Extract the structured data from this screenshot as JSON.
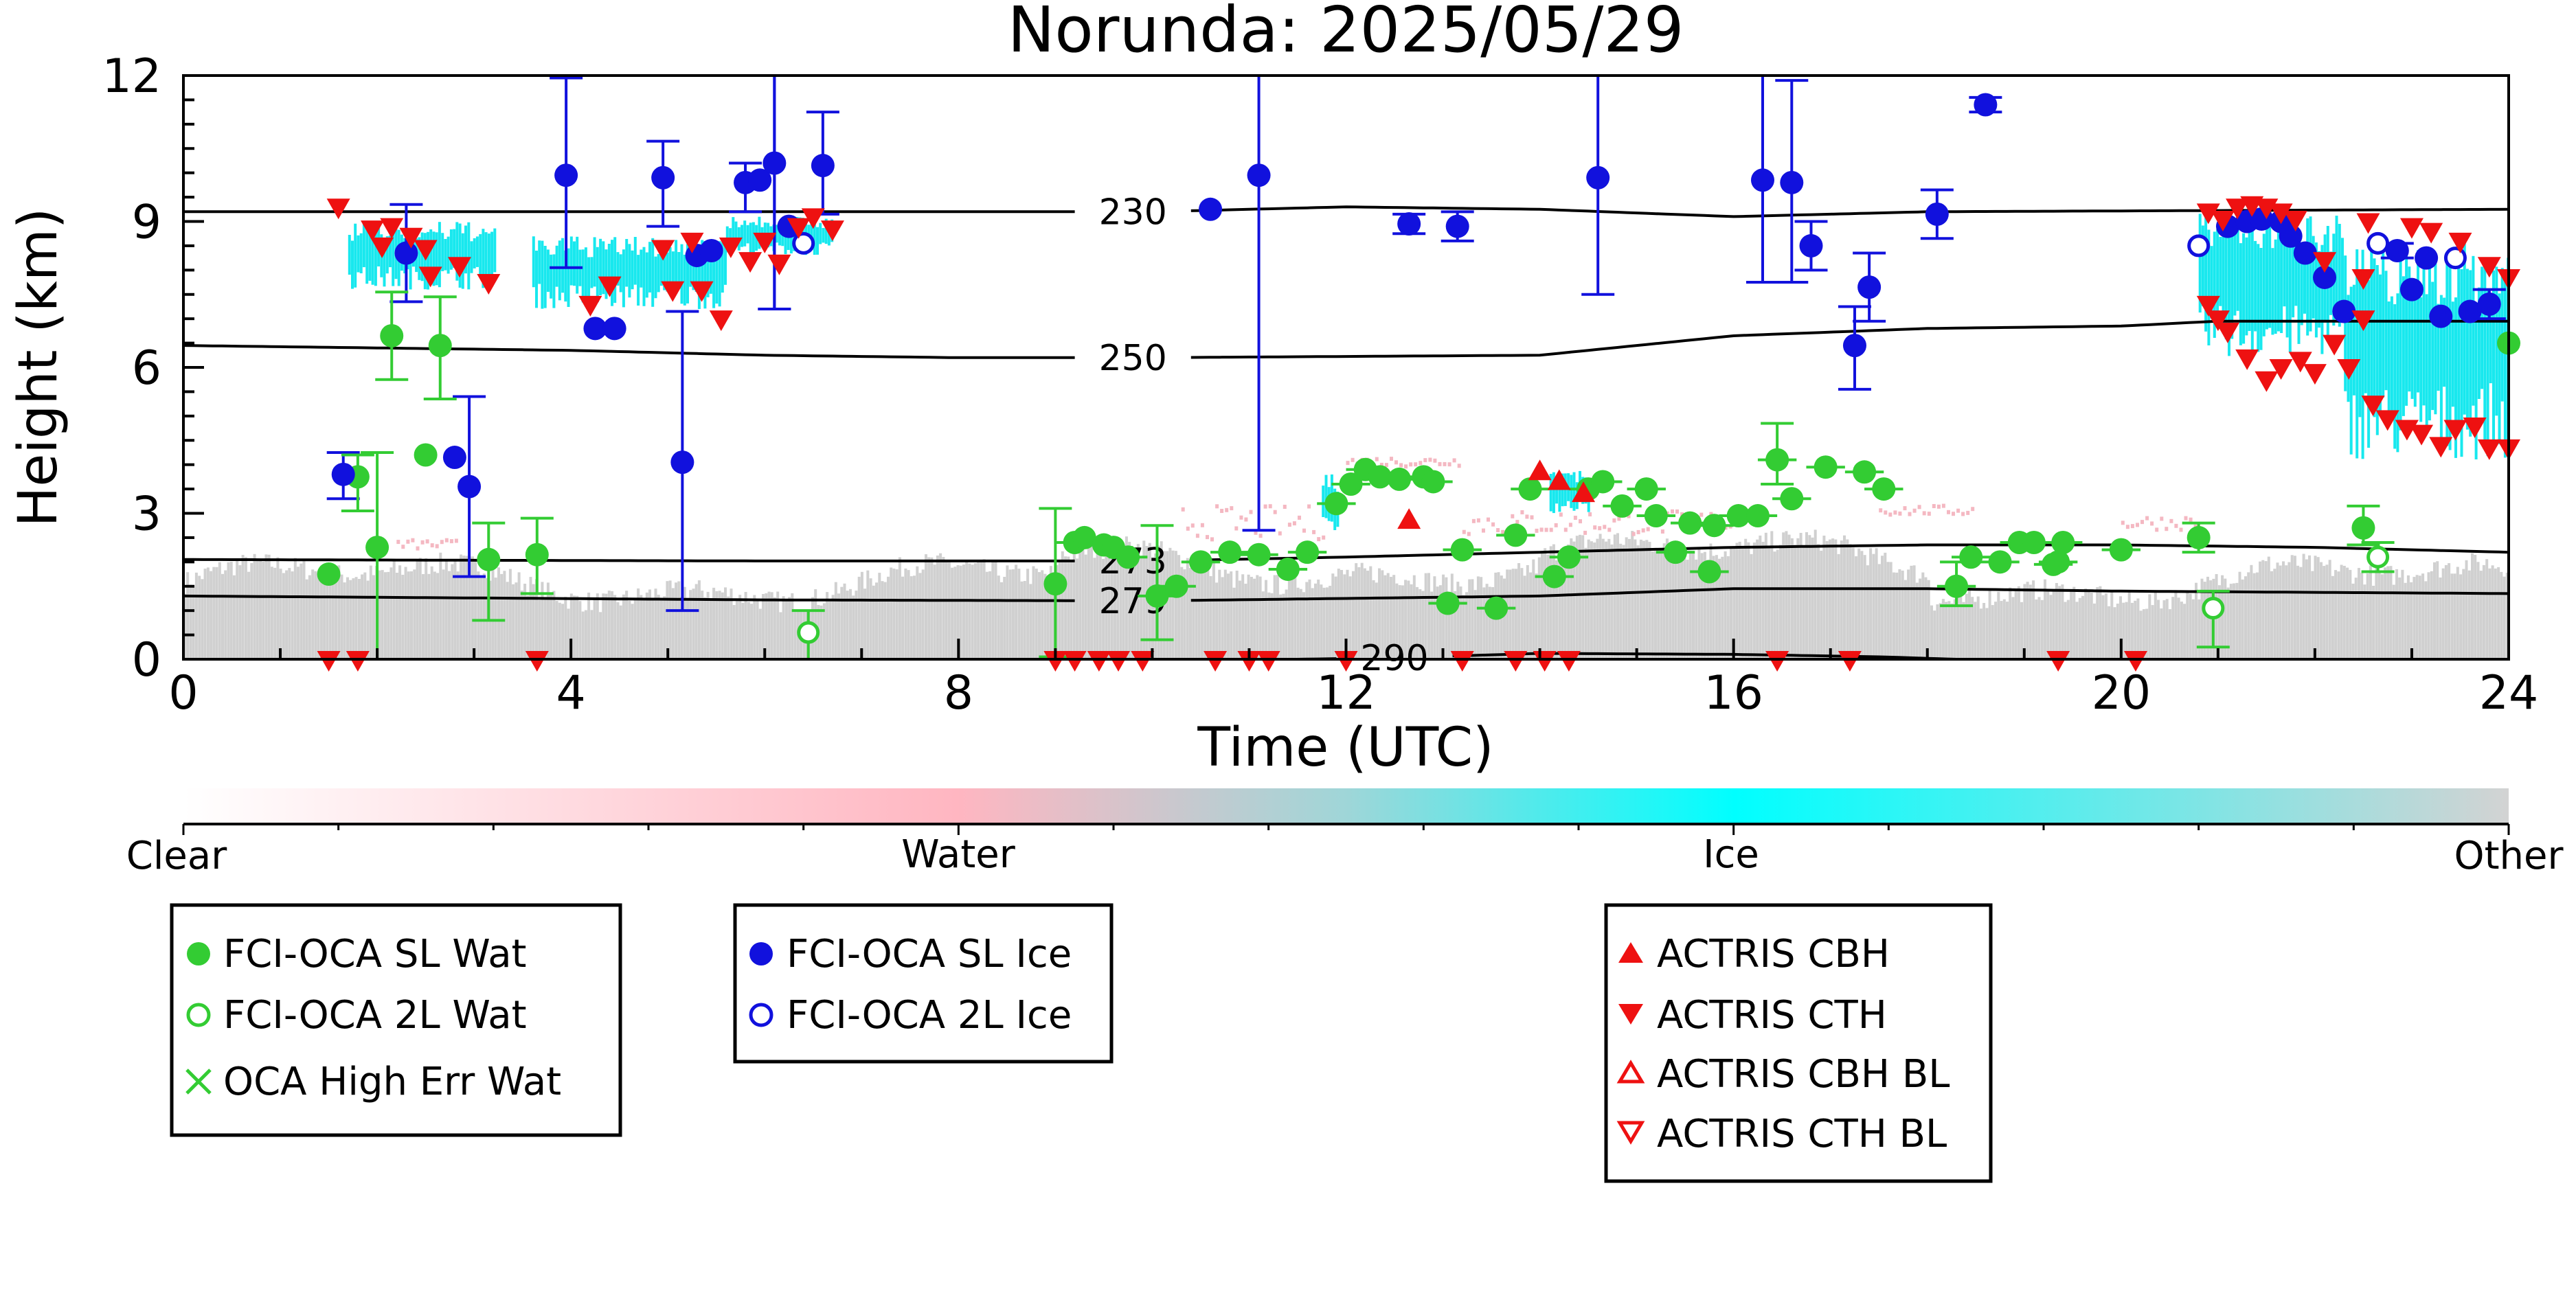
{
  "chart_data": {
    "type": "scatter",
    "title": "Norunda: 2025/05/29",
    "xlabel": "Time (UTC)",
    "ylabel": "Height (km)",
    "xlim": [
      0,
      24
    ],
    "ylim": [
      0,
      12
    ],
    "xticks": [
      "0",
      "4",
      "8",
      "12",
      "16",
      "20",
      "24"
    ],
    "yticks": [
      "0",
      "3",
      "6",
      "9",
      "12"
    ],
    "colors": {
      "sl_water": "#33cc33",
      "ice": "#1111dd",
      "actris": "#ee1111",
      "cyan": "#18e8ee",
      "pink": "#f4b8c2",
      "grey": "#d0d0d0"
    },
    "isotherms": [
      {
        "label": "230",
        "label_x": 9.8,
        "points": [
          [
            0,
            9.2
          ],
          [
            8,
            9.2
          ],
          [
            10,
            9.2
          ],
          [
            12,
            9.3
          ],
          [
            14,
            9.25
          ],
          [
            16,
            9.1
          ],
          [
            18,
            9.2
          ],
          [
            24,
            9.25
          ]
        ]
      },
      {
        "label": "250",
        "label_x": 9.8,
        "points": [
          [
            0,
            6.45
          ],
          [
            4,
            6.35
          ],
          [
            6,
            6.25
          ],
          [
            8,
            6.2
          ],
          [
            10,
            6.2
          ],
          [
            14,
            6.25
          ],
          [
            15,
            6.45
          ],
          [
            16,
            6.65
          ],
          [
            18,
            6.8
          ],
          [
            20,
            6.85
          ],
          [
            21,
            6.95
          ],
          [
            24,
            6.95
          ]
        ]
      },
      {
        "label": "273",
        "label_x": 9.8,
        "points": [
          [
            0,
            2.05
          ],
          [
            6,
            2.02
          ],
          [
            10,
            2.02
          ],
          [
            12,
            2.1
          ],
          [
            14,
            2.2
          ],
          [
            16,
            2.3
          ],
          [
            18,
            2.35
          ],
          [
            20,
            2.35
          ],
          [
            22,
            2.3
          ],
          [
            24,
            2.2
          ]
        ]
      },
      {
        "label": "279",
        "label_x": 9.8,
        "points": [
          [
            0,
            1.3
          ],
          [
            6,
            1.22
          ],
          [
            10,
            1.2
          ],
          [
            12,
            1.25
          ],
          [
            14,
            1.3
          ],
          [
            16,
            1.45
          ],
          [
            18,
            1.45
          ],
          [
            20,
            1.4
          ],
          [
            24,
            1.35
          ]
        ]
      },
      {
        "label": "290",
        "label_x": 12.5,
        "points": [
          [
            11.5,
            0.0
          ],
          [
            12.5,
            0.03
          ],
          [
            14,
            0.12
          ],
          [
            16,
            0.1
          ],
          [
            17.5,
            0.05
          ],
          [
            18.3,
            0.0
          ]
        ]
      }
    ],
    "series": [
      {
        "name": "FCI-OCA SL Wat",
        "points": [
          [
            1.5,
            1.75
          ],
          [
            1.8,
            3.75
          ],
          [
            2.0,
            2.3
          ],
          [
            2.15,
            6.65
          ],
          [
            2.5,
            4.2
          ],
          [
            2.65,
            6.45
          ],
          [
            3.15,
            2.05
          ],
          [
            3.65,
            2.15
          ],
          [
            9.0,
            1.55
          ],
          [
            9.2,
            2.4
          ],
          [
            9.3,
            2.5
          ],
          [
            9.5,
            2.35
          ],
          [
            9.6,
            2.3
          ],
          [
            9.75,
            2.1
          ],
          [
            10.05,
            1.3
          ],
          [
            10.25,
            1.5
          ],
          [
            10.5,
            2.0
          ],
          [
            10.8,
            2.2
          ],
          [
            11.1,
            2.15
          ],
          [
            11.4,
            1.85
          ],
          [
            11.6,
            2.2
          ],
          [
            11.9,
            3.2
          ],
          [
            12.05,
            3.6
          ],
          [
            12.2,
            3.9
          ],
          [
            12.35,
            3.75
          ],
          [
            12.55,
            3.7
          ],
          [
            12.8,
            3.75
          ],
          [
            12.9,
            3.65
          ],
          [
            13.05,
            1.15
          ],
          [
            13.2,
            2.25
          ],
          [
            13.55,
            1.05
          ],
          [
            13.75,
            2.55
          ],
          [
            13.9,
            3.5
          ],
          [
            14.15,
            1.7
          ],
          [
            14.3,
            2.1
          ],
          [
            14.5,
            3.5
          ],
          [
            14.65,
            3.65
          ],
          [
            14.85,
            3.15
          ],
          [
            15.1,
            3.5
          ],
          [
            15.2,
            2.95
          ],
          [
            15.4,
            2.2
          ],
          [
            15.55,
            2.8
          ],
          [
            15.75,
            1.8
          ],
          [
            15.8,
            2.75
          ],
          [
            16.05,
            2.95
          ],
          [
            16.25,
            2.95
          ],
          [
            16.45,
            4.1
          ],
          [
            16.6,
            3.3
          ],
          [
            16.95,
            3.95
          ],
          [
            17.35,
            3.85
          ],
          [
            17.55,
            3.5
          ],
          [
            18.3,
            1.5
          ],
          [
            18.45,
            2.1
          ],
          [
            18.75,
            2.0
          ],
          [
            18.95,
            2.4
          ],
          [
            19.1,
            2.4
          ],
          [
            19.3,
            1.95
          ],
          [
            19.35,
            2.0
          ],
          [
            19.4,
            2.4
          ],
          [
            20.0,
            2.25
          ],
          [
            20.8,
            2.5
          ],
          [
            22.5,
            2.7
          ],
          [
            24.0,
            6.5
          ]
        ]
      },
      {
        "name": "FCI-OCA 2L Wat",
        "points": [
          [
            6.45,
            0.55
          ],
          [
            20.95,
            1.05
          ],
          [
            22.65,
            2.1
          ]
        ]
      },
      {
        "name": "OCA High Err Wat",
        "points": []
      },
      {
        "name": "FCI-OCA SL Ice",
        "points": [
          [
            1.65,
            3.8
          ],
          [
            2.3,
            8.35
          ],
          [
            2.8,
            4.15
          ],
          [
            2.95,
            3.55
          ],
          [
            3.95,
            9.95
          ],
          [
            4.25,
            6.8
          ],
          [
            4.45,
            6.8
          ],
          [
            4.95,
            9.9
          ],
          [
            5.15,
            4.05
          ],
          [
            5.3,
            8.3
          ],
          [
            5.45,
            8.4
          ],
          [
            5.8,
            9.8
          ],
          [
            5.95,
            9.85
          ],
          [
            6.1,
            10.2
          ],
          [
            6.25,
            8.9
          ],
          [
            6.6,
            10.15
          ],
          [
            10.6,
            9.25
          ],
          [
            11.1,
            9.95
          ],
          [
            12.65,
            8.95
          ],
          [
            13.15,
            8.9
          ],
          [
            14.6,
            9.9
          ],
          [
            16.3,
            9.85
          ],
          [
            16.6,
            9.8
          ],
          [
            16.8,
            8.5
          ],
          [
            17.25,
            6.45
          ],
          [
            17.4,
            7.65
          ],
          [
            18.1,
            9.15
          ],
          [
            18.6,
            11.4
          ],
          [
            21.1,
            8.9
          ],
          [
            21.3,
            9.0
          ],
          [
            21.45,
            9.05
          ],
          [
            21.65,
            9.0
          ],
          [
            21.75,
            8.7
          ],
          [
            21.9,
            8.35
          ],
          [
            22.1,
            7.85
          ],
          [
            22.3,
            7.15
          ],
          [
            22.85,
            8.4
          ],
          [
            23.0,
            7.6
          ],
          [
            23.15,
            8.25
          ],
          [
            23.3,
            7.05
          ],
          [
            23.6,
            7.15
          ],
          [
            23.8,
            7.3
          ]
        ]
      },
      {
        "name": "FCI-OCA 2L Ice",
        "points": [
          [
            6.4,
            8.55
          ],
          [
            20.8,
            8.5
          ],
          [
            22.65,
            8.55
          ],
          [
            23.45,
            8.25
          ]
        ]
      },
      {
        "name": "ACTRIS CBH",
        "points": [
          [
            12.65,
            2.85
          ],
          [
            14.0,
            3.85
          ],
          [
            14.2,
            3.65
          ],
          [
            14.45,
            3.4
          ]
        ]
      },
      {
        "name": "ACTRIS CTH",
        "points": [
          [
            1.6,
            9.3
          ],
          [
            1.95,
            8.85
          ],
          [
            2.05,
            8.5
          ],
          [
            2.15,
            8.9
          ],
          [
            2.35,
            8.7
          ],
          [
            2.5,
            8.45
          ],
          [
            2.55,
            7.9
          ],
          [
            2.85,
            8.1
          ],
          [
            3.15,
            7.75
          ],
          [
            4.2,
            7.3
          ],
          [
            4.4,
            7.7
          ],
          [
            4.95,
            8.45
          ],
          [
            5.05,
            7.6
          ],
          [
            5.25,
            8.6
          ],
          [
            5.35,
            7.6
          ],
          [
            5.55,
            7.0
          ],
          [
            5.65,
            8.5
          ],
          [
            5.85,
            8.2
          ],
          [
            6.0,
            8.6
          ],
          [
            6.15,
            8.15
          ],
          [
            6.35,
            8.9
          ],
          [
            6.5,
            9.1
          ],
          [
            6.7,
            8.85
          ],
          [
            20.9,
            9.2
          ],
          [
            21.05,
            9.05
          ],
          [
            21.2,
            9.3
          ],
          [
            21.35,
            9.35
          ],
          [
            21.5,
            9.3
          ],
          [
            21.65,
            9.2
          ],
          [
            21.8,
            9.05
          ],
          [
            22.1,
            8.2
          ],
          [
            22.5,
            7.85
          ],
          [
            22.55,
            9.0
          ],
          [
            23.0,
            8.9
          ],
          [
            23.2,
            8.8
          ],
          [
            23.5,
            8.6
          ],
          [
            23.8,
            8.1
          ],
          [
            24.0,
            7.85
          ],
          [
            20.9,
            7.3
          ],
          [
            21.0,
            7.0
          ],
          [
            21.1,
            6.75
          ],
          [
            21.3,
            6.2
          ],
          [
            21.5,
            5.75
          ],
          [
            21.65,
            6.0
          ],
          [
            21.85,
            6.15
          ],
          [
            22.0,
            5.9
          ],
          [
            22.2,
            6.5
          ],
          [
            22.35,
            6.0
          ],
          [
            22.5,
            7.0
          ],
          [
            22.6,
            5.25
          ],
          [
            22.75,
            4.95
          ],
          [
            22.95,
            4.75
          ],
          [
            23.1,
            4.65
          ],
          [
            23.3,
            4.4
          ],
          [
            23.45,
            4.75
          ],
          [
            23.65,
            4.8
          ],
          [
            23.8,
            4.35
          ],
          [
            24.0,
            4.35
          ],
          [
            1.5,
            0.0
          ],
          [
            1.8,
            0.0
          ],
          [
            3.65,
            0.0
          ],
          [
            9.0,
            0.0
          ],
          [
            9.2,
            0.0
          ],
          [
            9.45,
            0.0
          ],
          [
            9.65,
            0.0
          ],
          [
            9.9,
            0.0
          ],
          [
            10.65,
            0.0
          ],
          [
            11.0,
            0.0
          ],
          [
            11.2,
            0.0
          ],
          [
            12.0,
            0.0
          ],
          [
            13.2,
            0.0
          ],
          [
            13.75,
            0.0
          ],
          [
            14.05,
            0.0
          ],
          [
            14.3,
            0.0
          ],
          [
            16.45,
            0.0
          ],
          [
            17.2,
            0.0
          ],
          [
            19.35,
            0.0
          ],
          [
            20.15,
            0.0
          ]
        ]
      },
      {
        "name": "ACTRIS CBH BL",
        "points": []
      },
      {
        "name": "ACTRIS CTH BL",
        "points": []
      }
    ],
    "colorbar": {
      "labels": [
        "Clear",
        "Water",
        "Ice",
        "Other"
      ]
    },
    "legends": [
      {
        "entries": [
          "FCI-OCA SL Wat",
          "FCI-OCA 2L Wat",
          "OCA High Err Wat"
        ]
      },
      {
        "entries": [
          "FCI-OCA SL Ice",
          "FCI-OCA 2L Ice"
        ]
      },
      {
        "entries": [
          "ACTRIS CBH",
          "ACTRIS CTH",
          "ACTRIS CBH BL",
          "ACTRIS CTH BL"
        ]
      }
    ]
  }
}
